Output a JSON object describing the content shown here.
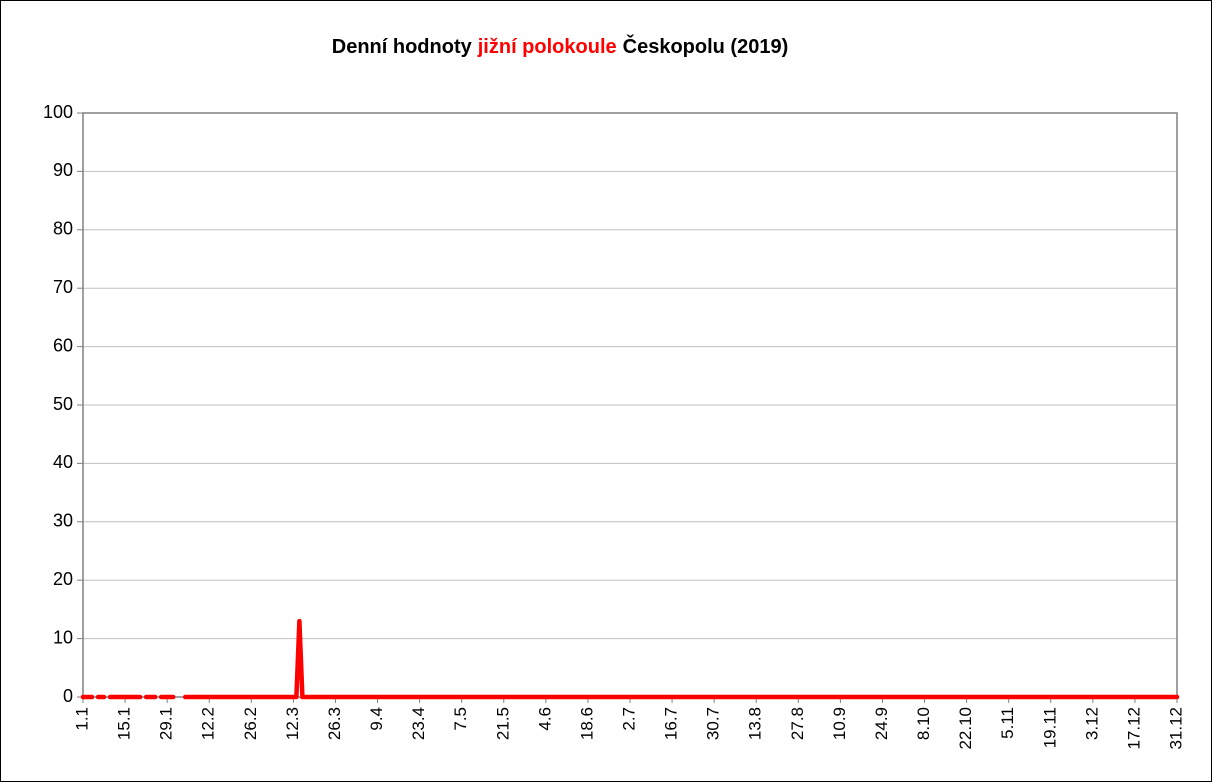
{
  "chart_data": {
    "type": "line",
    "title_parts": [
      {
        "text": "Denní hodnoty",
        "color": "#000000"
      },
      {
        "text": "jižní polokoule",
        "color": "#ff0000"
      },
      {
        "text": "Českopolu (2019)",
        "color": "#000000"
      }
    ],
    "categories": [
      "1.1",
      null,
      null,
      null,
      null,
      null,
      null,
      null,
      null,
      null,
      null,
      null,
      null,
      null,
      "15.1",
      null,
      null,
      null,
      null,
      null,
      null,
      null,
      null,
      null,
      null,
      null,
      null,
      null,
      "29.1",
      null,
      null,
      null,
      null,
      null,
      null,
      null,
      null,
      null,
      null,
      null,
      null,
      null,
      "12.2",
      null,
      null,
      null,
      null,
      null,
      null,
      null,
      null,
      null,
      null,
      null,
      null,
      null,
      "26.2",
      null,
      null,
      null,
      null,
      null,
      null,
      null,
      null,
      null,
      null,
      null,
      null,
      null,
      "12.3",
      null,
      null,
      null,
      null,
      null,
      null,
      null,
      null,
      null,
      null,
      null,
      null,
      null,
      "26.3",
      null,
      null,
      null,
      null,
      null,
      null,
      null,
      null,
      null,
      null,
      null,
      null,
      null,
      "9.4",
      null,
      null,
      null,
      null,
      null,
      null,
      null,
      null,
      null,
      null,
      null,
      null,
      null,
      "23.4",
      null,
      null,
      null,
      null,
      null,
      null,
      null,
      null,
      null,
      null,
      null,
      null,
      null,
      "7.5",
      null,
      null,
      null,
      null,
      null,
      null,
      null,
      null,
      null,
      null,
      null,
      null,
      null,
      "21.5",
      null,
      null,
      null,
      null,
      null,
      null,
      null,
      null,
      null,
      null,
      null,
      null,
      null,
      "4.6",
      null,
      null,
      null,
      null,
      null,
      null,
      null,
      null,
      null,
      null,
      null,
      null,
      null,
      "18.6",
      null,
      null,
      null,
      null,
      null,
      null,
      null,
      null,
      null,
      null,
      null,
      null,
      null,
      "2.7",
      null,
      null,
      null,
      null,
      null,
      null,
      null,
      null,
      null,
      null,
      null,
      null,
      null,
      "16.7",
      null,
      null,
      null,
      null,
      null,
      null,
      null,
      null,
      null,
      null,
      null,
      null,
      null,
      "30.7",
      null,
      null,
      null,
      null,
      null,
      null,
      null,
      null,
      null,
      null,
      null,
      null,
      null,
      "13.8",
      null,
      null,
      null,
      null,
      null,
      null,
      null,
      null,
      null,
      null,
      null,
      null,
      null,
      "27.8",
      null,
      null,
      null,
      null,
      null,
      null,
      null,
      null,
      null,
      null,
      null,
      null,
      null,
      "10.9",
      null,
      null,
      null,
      null,
      null,
      null,
      null,
      null,
      null,
      null,
      null,
      null,
      null,
      "24.9",
      null,
      null,
      null,
      null,
      null,
      null,
      null,
      null,
      null,
      null,
      null,
      null,
      null,
      "8.10",
      null,
      null,
      null,
      null,
      null,
      null,
      null,
      null,
      null,
      null,
      null,
      null,
      null,
      "22.10",
      null,
      null,
      null,
      null,
      null,
      null,
      null,
      null,
      null,
      null,
      null,
      null,
      null,
      "5.11",
      null,
      null,
      null,
      null,
      null,
      null,
      null,
      null,
      null,
      null,
      null,
      null,
      null,
      "19.11",
      null,
      null,
      null,
      null,
      null,
      null,
      null,
      null,
      null,
      null,
      null,
      null,
      null,
      "3.12",
      null,
      null,
      null,
      null,
      null,
      null,
      null,
      null,
      null,
      null,
      null,
      null,
      null,
      "17.12",
      null,
      null,
      null,
      null,
      null,
      null,
      null,
      null,
      null,
      null,
      null,
      null,
      null,
      "31.12"
    ],
    "values": [
      0,
      0,
      0,
      0,
      null,
      0,
      0,
      0,
      null,
      0,
      0,
      0,
      0,
      0,
      0,
      0,
      0,
      0,
      0,
      0,
      null,
      0,
      0,
      0,
      0,
      null,
      0,
      0,
      0,
      0,
      0,
      null,
      null,
      null,
      0,
      0,
      0,
      0,
      0,
      0,
      0,
      0,
      0,
      0,
      0,
      0,
      0,
      0,
      0,
      0,
      0,
      0,
      0,
      0,
      0,
      0,
      0,
      0,
      0,
      0,
      0,
      0,
      0,
      0,
      0,
      0,
      0,
      0,
      0,
      0,
      0,
      0,
      13,
      0,
      0,
      0,
      0,
      0,
      0,
      0,
      0,
      0,
      0,
      0,
      0,
      0,
      0,
      0,
      0,
      0,
      0,
      0,
      0,
      0,
      0,
      0,
      0,
      0,
      0,
      0,
      0,
      0,
      0,
      0,
      0,
      0,
      0,
      0,
      0,
      0,
      0,
      0,
      0,
      0,
      0,
      0,
      0,
      0,
      0,
      0,
      0,
      0,
      0,
      0,
      0,
      0,
      0,
      0,
      0,
      0,
      0,
      0,
      0,
      0,
      0,
      0,
      0,
      0,
      0,
      0,
      0,
      0,
      0,
      0,
      0,
      0,
      0,
      0,
      0,
      0,
      0,
      0,
      0,
      0,
      0,
      0,
      0,
      0,
      0,
      0,
      0,
      0,
      0,
      0,
      0,
      0,
      0,
      0,
      0,
      0,
      0,
      0,
      0,
      0,
      0,
      0,
      0,
      0,
      0,
      0,
      0,
      0,
      0,
      0,
      0,
      0,
      0,
      0,
      0,
      0,
      0,
      0,
      0,
      0,
      0,
      0,
      0,
      0,
      0,
      0,
      0,
      0,
      0,
      0,
      0,
      0,
      0,
      0,
      0,
      0,
      0,
      0,
      0,
      0,
      0,
      0,
      0,
      0,
      0,
      0,
      0,
      0,
      0,
      0,
      0,
      0,
      0,
      0,
      0,
      0,
      0,
      0,
      0,
      0,
      0,
      0,
      0,
      0,
      0,
      0,
      0,
      0,
      0,
      0,
      0,
      0,
      0,
      0,
      0,
      0,
      0,
      0,
      0,
      0,
      0,
      0,
      0,
      0,
      0,
      0,
      0,
      0,
      0,
      0,
      0,
      0,
      0,
      0,
      0,
      0,
      0,
      0,
      0,
      0,
      0,
      0,
      0,
      0,
      0,
      0,
      0,
      0,
      0,
      0,
      0,
      0,
      0,
      0,
      0,
      0,
      0,
      0,
      0,
      0,
      0,
      0,
      0,
      0,
      0,
      0,
      0,
      0,
      0,
      0,
      0,
      0,
      0,
      0,
      0,
      0,
      0,
      0,
      0,
      0,
      0,
      0,
      0,
      0,
      0,
      0,
      0,
      0,
      0,
      0,
      0,
      0,
      0,
      0,
      0,
      0,
      0,
      0,
      0,
      0,
      0,
      0,
      0,
      0,
      0,
      0,
      0,
      0,
      0,
      0,
      0,
      0,
      0,
      0,
      0,
      0,
      0,
      0,
      0,
      0,
      0,
      0,
      0,
      0,
      0,
      0,
      0,
      0,
      0,
      0,
      0
    ],
    "color": "#ff0000",
    "ylim": [
      0,
      100
    ],
    "yticks": [
      0,
      10,
      20,
      30,
      40,
      50,
      60,
      70,
      80,
      90,
      100
    ],
    "grid": true
  }
}
